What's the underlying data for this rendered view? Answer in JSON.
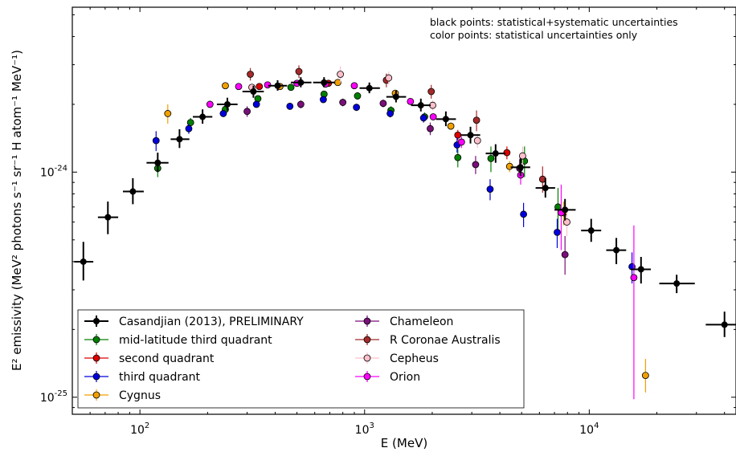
{
  "chart_data": {
    "type": "scatter",
    "xlabel": "E (MeV)",
    "ylabel": "E² emissivity (MeV² photons s⁻¹ sr⁻¹ H atom⁻¹ MeV⁻¹)",
    "x_scale": "log",
    "y_scale": "log",
    "xlim": [
      50,
      45000
    ],
    "ylim": [
      8.4e-26,
      5.4e-24
    ],
    "x_ticks": [
      100,
      1000,
      10000
    ],
    "x_tick_labels": [
      {
        "base": "10",
        "exp": "2"
      },
      {
        "base": "10",
        "exp": "3"
      },
      {
        "base": "10",
        "exp": "4"
      }
    ],
    "y_ticks": [
      1e-25,
      1e-24
    ],
    "y_tick_labels": [
      {
        "base": "10",
        "exp": "-25"
      },
      {
        "base": "10",
        "exp": "-24"
      }
    ],
    "annotations": [
      "black points: statistical+systematic uncertainties",
      "color points: statistical uncertainties only"
    ],
    "legend_placement": "lower-left",
    "series": [
      {
        "name": "Casandjian (2013), PRELIMINARY",
        "color": "#000000",
        "points": [
          {
            "x": 56,
            "y": 4e-25,
            "xlo": 51,
            "xhi": 62,
            "ylo": 3.3e-25,
            "yhi": 4.9e-25
          },
          {
            "x": 72,
            "y": 6.3e-25,
            "xlo": 65,
            "xhi": 80,
            "ylo": 5.3e-25,
            "yhi": 7.4e-25
          },
          {
            "x": 93,
            "y": 8.2e-25,
            "xlo": 84,
            "xhi": 104,
            "ylo": 7.2e-25,
            "yhi": 9.4e-25
          },
          {
            "x": 120,
            "y": 1.1e-24,
            "xlo": 107,
            "xhi": 134,
            "ylo": 1e-24,
            "yhi": 1.22e-24
          },
          {
            "x": 150,
            "y": 1.4e-24,
            "xlo": 137,
            "xhi": 166,
            "ylo": 1.28e-24,
            "yhi": 1.55e-24
          },
          {
            "x": 190,
            "y": 1.76e-24,
            "xlo": 172,
            "xhi": 210,
            "ylo": 1.64e-24,
            "yhi": 1.9e-24
          },
          {
            "x": 245,
            "y": 2e-24,
            "xlo": 220,
            "xhi": 272,
            "ylo": 1.88e-24,
            "yhi": 2.14e-24
          },
          {
            "x": 320,
            "y": 2.28e-24,
            "xlo": 286,
            "xhi": 356,
            "ylo": 2.14e-24,
            "yhi": 2.42e-24
          },
          {
            "x": 410,
            "y": 2.42e-24,
            "xlo": 372,
            "xhi": 452,
            "ylo": 2.3e-24,
            "yhi": 2.56e-24
          },
          {
            "x": 520,
            "y": 2.5e-24,
            "xlo": 470,
            "xhi": 580,
            "ylo": 2.38e-24,
            "yhi": 2.64e-24
          },
          {
            "x": 660,
            "y": 2.5e-24,
            "xlo": 590,
            "xhi": 740,
            "ylo": 2.38e-24,
            "yhi": 2.64e-24
          },
          {
            "x": 1050,
            "y": 2.36e-24,
            "xlo": 950,
            "xhi": 1170,
            "ylo": 2.24e-24,
            "yhi": 2.5e-24
          },
          {
            "x": 1380,
            "y": 2.16e-24,
            "xlo": 1250,
            "xhi": 1530,
            "ylo": 2.04e-24,
            "yhi": 2.3e-24
          },
          {
            "x": 1780,
            "y": 1.98e-24,
            "xlo": 1610,
            "xhi": 1970,
            "ylo": 1.86e-24,
            "yhi": 2.12e-24
          },
          {
            "x": 2300,
            "y": 1.72e-24,
            "xlo": 2080,
            "xhi": 2550,
            "ylo": 1.6e-24,
            "yhi": 1.86e-24
          },
          {
            "x": 2960,
            "y": 1.46e-24,
            "xlo": 2680,
            "xhi": 3270,
            "ylo": 1.34e-24,
            "yhi": 1.59e-24
          },
          {
            "x": 3830,
            "y": 1.21e-24,
            "xlo": 3460,
            "xhi": 4230,
            "ylo": 1.1e-24,
            "yhi": 1.33e-24
          },
          {
            "x": 4940,
            "y": 1.05e-24,
            "xlo": 4470,
            "xhi": 5460,
            "ylo": 9.6e-25,
            "yhi": 1.15e-24
          },
          {
            "x": 6380,
            "y": 8.5e-25,
            "xlo": 5770,
            "xhi": 7050,
            "ylo": 7.7e-25,
            "yhi": 9.4e-25
          },
          {
            "x": 7800,
            "y": 6.8e-25,
            "xlo": 7000,
            "xhi": 8700,
            "ylo": 6.1e-25,
            "yhi": 7.6e-25
          },
          {
            "x": 10200,
            "y": 5.5e-25,
            "xlo": 9200,
            "xhi": 11300,
            "ylo": 4.9e-25,
            "yhi": 6.2e-25
          },
          {
            "x": 13200,
            "y": 4.5e-25,
            "xlo": 11900,
            "xhi": 14600,
            "ylo": 3.9e-25,
            "yhi": 5.1e-25
          },
          {
            "x": 17000,
            "y": 3.7e-25,
            "xlo": 15300,
            "xhi": 18800,
            "ylo": 3.2e-25,
            "yhi": 4.2e-25
          },
          {
            "x": 24500,
            "y": 3.2e-25,
            "xlo": 20500,
            "xhi": 29500,
            "ylo": 2.9e-25,
            "yhi": 3.5e-25
          },
          {
            "x": 40000,
            "y": 2.1e-25,
            "xlo": 33000,
            "xhi": 48000,
            "ylo": 1.85e-25,
            "yhi": 2.4e-25
          }
        ]
      },
      {
        "name": "mid-latitude third quadrant",
        "color": "#008000",
        "points": [
          {
            "x": 120,
            "y": 1.04e-24,
            "ylo": 9.5e-25,
            "yhi": 1.13e-24
          },
          {
            "x": 168,
            "y": 1.66e-24,
            "ylo": 1.58e-24,
            "yhi": 1.74e-24
          },
          {
            "x": 240,
            "y": 1.9e-24,
            "ylo": 1.83e-24,
            "yhi": 1.97e-24
          },
          {
            "x": 335,
            "y": 2.12e-24,
            "ylo": 2.05e-24,
            "yhi": 2.19e-24
          },
          {
            "x": 470,
            "y": 2.38e-24,
            "ylo": 2.3e-24,
            "yhi": 2.46e-24
          },
          {
            "x": 660,
            "y": 2.22e-24,
            "ylo": 2.15e-24,
            "yhi": 2.29e-24
          },
          {
            "x": 930,
            "y": 2.18e-24,
            "ylo": 2.1e-24,
            "yhi": 2.26e-24
          },
          {
            "x": 1310,
            "y": 1.88e-24,
            "ylo": 1.8e-24,
            "yhi": 1.96e-24
          },
          {
            "x": 1850,
            "y": 1.76e-24,
            "ylo": 1.68e-24,
            "yhi": 1.84e-24
          },
          {
            "x": 2600,
            "y": 1.16e-24,
            "ylo": 1.05e-24,
            "yhi": 1.27e-24
          },
          {
            "x": 3650,
            "y": 1.15e-24,
            "ylo": 1e-24,
            "yhi": 1.3e-24
          },
          {
            "x": 5150,
            "y": 1.12e-24,
            "ylo": 9.5e-25,
            "yhi": 1.3e-24
          },
          {
            "x": 7260,
            "y": 7e-25,
            "ylo": 5.5e-25,
            "yhi": 8.5e-25
          }
        ]
      },
      {
        "name": "second quadrant",
        "color": "#dd0000",
        "points": [
          {
            "x": 340,
            "y": 2.4e-24,
            "ylo": 2.34e-24,
            "yhi": 2.46e-24
          },
          {
            "x": 690,
            "y": 2.48e-24,
            "ylo": 2.42e-24,
            "yhi": 2.54e-24
          },
          {
            "x": 2600,
            "y": 1.46e-24,
            "ylo": 1.38e-24,
            "yhi": 1.54e-24
          },
          {
            "x": 4300,
            "y": 1.22e-24,
            "ylo": 1.14e-24,
            "yhi": 1.3e-24
          }
        ]
      },
      {
        "name": "third quadrant",
        "color": "#0000dd",
        "points": [
          {
            "x": 118,
            "y": 1.38e-24,
            "ylo": 1.24e-24,
            "yhi": 1.52e-24
          },
          {
            "x": 165,
            "y": 1.56e-24,
            "ylo": 1.48e-24,
            "yhi": 1.64e-24
          },
          {
            "x": 235,
            "y": 1.82e-24,
            "ylo": 1.76e-24,
            "yhi": 1.88e-24
          },
          {
            "x": 330,
            "y": 2e-24,
            "ylo": 1.94e-24,
            "yhi": 2.06e-24
          },
          {
            "x": 465,
            "y": 1.96e-24,
            "ylo": 1.9e-24,
            "yhi": 2.02e-24
          },
          {
            "x": 655,
            "y": 2.1e-24,
            "ylo": 2.03e-24,
            "yhi": 2.17e-24
          },
          {
            "x": 920,
            "y": 1.94e-24,
            "ylo": 1.87e-24,
            "yhi": 2.01e-24
          },
          {
            "x": 1300,
            "y": 1.82e-24,
            "ylo": 1.75e-24,
            "yhi": 1.89e-24
          },
          {
            "x": 1830,
            "y": 1.74e-24,
            "ylo": 1.66e-24,
            "yhi": 1.82e-24
          },
          {
            "x": 2580,
            "y": 1.32e-24,
            "ylo": 1.22e-24,
            "yhi": 1.42e-24
          },
          {
            "x": 3620,
            "y": 8.4e-25,
            "ylo": 7.5e-25,
            "yhi": 9.3e-25
          },
          {
            "x": 5100,
            "y": 6.5e-25,
            "ylo": 5.7e-25,
            "yhi": 7.3e-25
          },
          {
            "x": 7200,
            "y": 5.4e-25,
            "ylo": 4.6e-25,
            "yhi": 6.2e-25
          },
          {
            "x": 15500,
            "y": 3.8e-25,
            "ylo": 3.2e-25,
            "yhi": 4.4e-25
          }
        ]
      },
      {
        "name": "Cygnus",
        "color": "#f0a000",
        "points": [
          {
            "x": 133,
            "y": 1.82e-24,
            "ylo": 1.64e-24,
            "yhi": 2e-24
          },
          {
            "x": 240,
            "y": 2.42e-24,
            "ylo": 2.36e-24,
            "yhi": 2.48e-24
          },
          {
            "x": 420,
            "y": 2.4e-24,
            "ylo": 2.35e-24,
            "yhi": 2.45e-24
          },
          {
            "x": 760,
            "y": 2.5e-24,
            "ylo": 2.45e-24,
            "yhi": 2.55e-24
          },
          {
            "x": 1370,
            "y": 2.24e-24,
            "ylo": 2.18e-24,
            "yhi": 2.3e-24
          },
          {
            "x": 2420,
            "y": 1.6e-24,
            "ylo": 1.54e-24,
            "yhi": 1.66e-24
          },
          {
            "x": 4420,
            "y": 1.06e-24,
            "ylo": 1e-24,
            "yhi": 1.12e-24
          },
          {
            "x": 7700,
            "y": 6.6e-25,
            "ylo": 5.8e-25,
            "yhi": 7.4e-25
          },
          {
            "x": 17800,
            "y": 1.25e-25,
            "ylo": 1.05e-25,
            "yhi": 1.48e-25
          }
        ]
      },
      {
        "name": "Chameleon",
        "color": "#7a0f7a",
        "points": [
          {
            "x": 300,
            "y": 1.86e-24,
            "ylo": 1.76e-24,
            "yhi": 1.96e-24
          },
          {
            "x": 520,
            "y": 2e-24,
            "ylo": 1.92e-24,
            "yhi": 2.08e-24
          },
          {
            "x": 800,
            "y": 2.04e-24,
            "ylo": 1.96e-24,
            "yhi": 2.12e-24
          },
          {
            "x": 1210,
            "y": 2.02e-24,
            "ylo": 1.94e-24,
            "yhi": 2.1e-24
          },
          {
            "x": 1960,
            "y": 1.56e-24,
            "ylo": 1.46e-24,
            "yhi": 1.66e-24
          },
          {
            "x": 3120,
            "y": 1.08e-24,
            "ylo": 9.8e-25,
            "yhi": 1.18e-24
          },
          {
            "x": 4900,
            "y": 1.04e-24,
            "ylo": 9.4e-25,
            "yhi": 1.14e-24
          },
          {
            "x": 7800,
            "y": 4.3e-25,
            "ylo": 3.5e-25,
            "yhi": 5.2e-25
          }
        ]
      },
      {
        "name": "R Coronae Australis",
        "color": "#a52a2a",
        "points": [
          {
            "x": 310,
            "y": 2.72e-24,
            "ylo": 2.55e-24,
            "yhi": 2.9e-24
          },
          {
            "x": 510,
            "y": 2.8e-24,
            "ylo": 2.62e-24,
            "yhi": 2.98e-24
          },
          {
            "x": 1250,
            "y": 2.56e-24,
            "ylo": 2.38e-24,
            "yhi": 2.74e-24
          },
          {
            "x": 1980,
            "y": 2.28e-24,
            "ylo": 2.12e-24,
            "yhi": 2.44e-24
          },
          {
            "x": 3150,
            "y": 1.7e-24,
            "ylo": 1.52e-24,
            "yhi": 1.88e-24
          },
          {
            "x": 6200,
            "y": 9.3e-25,
            "ylo": 8.1e-25,
            "yhi": 1.06e-24
          }
        ]
      },
      {
        "name": "Cepheus",
        "color": "#ffc0cb",
        "points": [
          {
            "x": 315,
            "y": 2.38e-24,
            "ylo": 2.3e-24,
            "yhi": 2.46e-24
          },
          {
            "x": 780,
            "y": 2.72e-24,
            "ylo": 2.5e-24,
            "yhi": 2.95e-24
          },
          {
            "x": 1280,
            "y": 2.62e-24,
            "ylo": 2.45e-24,
            "yhi": 2.8e-24
          },
          {
            "x": 2010,
            "y": 1.98e-24,
            "ylo": 1.88e-24,
            "yhi": 2.08e-24
          },
          {
            "x": 3180,
            "y": 1.38e-24,
            "ylo": 1.28e-24,
            "yhi": 1.48e-24
          },
          {
            "x": 5050,
            "y": 1.18e-24,
            "ylo": 1.06e-24,
            "yhi": 1.3e-24
          },
          {
            "x": 7950,
            "y": 6e-25,
            "ylo": 5.2e-25,
            "yhi": 6.8e-25
          }
        ]
      },
      {
        "name": "Orion",
        "color": "#ff00ff",
        "points": [
          {
            "x": 205,
            "y": 2e-24,
            "ylo": 1.95e-24,
            "yhi": 2.05e-24
          },
          {
            "x": 275,
            "y": 2.4e-24,
            "ylo": 2.35e-24,
            "yhi": 2.45e-24
          },
          {
            "x": 370,
            "y": 2.44e-24,
            "ylo": 2.39e-24,
            "yhi": 2.49e-24
          },
          {
            "x": 500,
            "y": 2.48e-24,
            "ylo": 2.43e-24,
            "yhi": 2.53e-24
          },
          {
            "x": 670,
            "y": 2.46e-24,
            "ylo": 2.41e-24,
            "yhi": 2.51e-24
          },
          {
            "x": 900,
            "y": 2.42e-24,
            "ylo": 2.37e-24,
            "yhi": 2.47e-24
          },
          {
            "x": 1600,
            "y": 2.06e-24,
            "ylo": 2e-24,
            "yhi": 2.12e-24
          },
          {
            "x": 2020,
            "y": 1.76e-24,
            "ylo": 1.7e-24,
            "yhi": 1.82e-24
          },
          {
            "x": 2700,
            "y": 1.36e-24,
            "ylo": 1.28e-24,
            "yhi": 1.44e-24
          },
          {
            "x": 4950,
            "y": 9.7e-25,
            "ylo": 8.8e-25,
            "yhi": 1.06e-24
          },
          {
            "x": 7500,
            "y": 6.6e-25,
            "ylo": 4.5e-25,
            "yhi": 8.8e-25
          },
          {
            "x": 15800,
            "y": 3.4e-25,
            "ylo": 9.8e-26,
            "yhi": 5.8e-25
          }
        ]
      }
    ]
  }
}
